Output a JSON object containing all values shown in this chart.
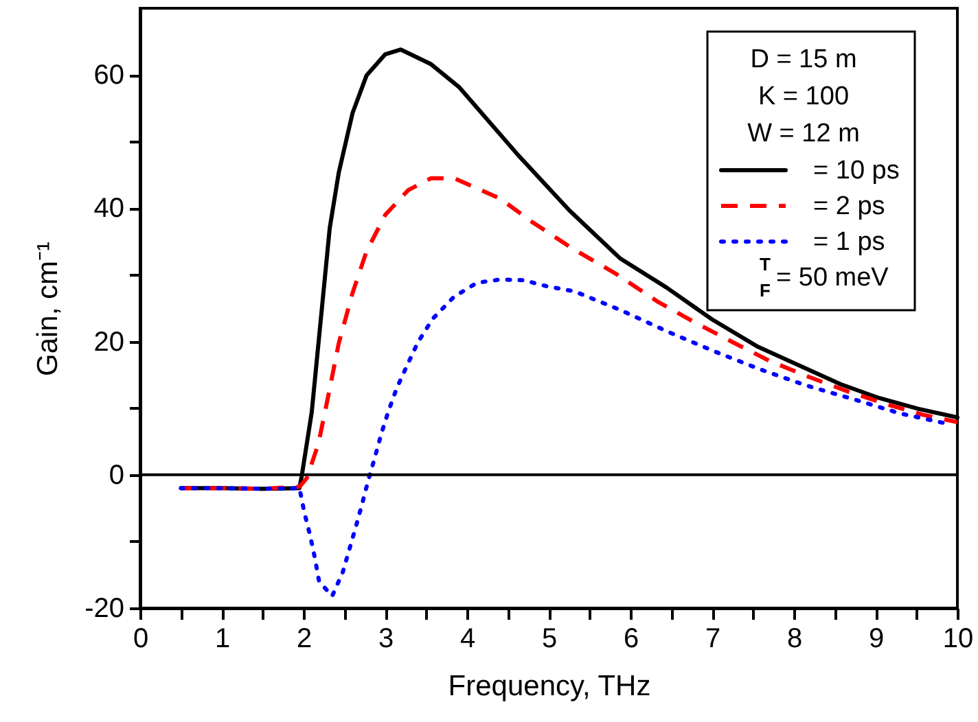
{
  "chart_data": {
    "type": "line",
    "xlabel": "Frequency, THz",
    "ylabel": "Gain, cm⁻¹",
    "xlim": [
      0,
      10
    ],
    "ylim": [
      -20,
      70
    ],
    "xticks": [
      0,
      {
        "value": 0.5,
        "label": null
      },
      1,
      {
        "value": 1.5,
        "label": null
      },
      2,
      {
        "value": 2.5,
        "label": null
      },
      3,
      {
        "value": 3.5,
        "label": null
      },
      4,
      {
        "value": 4.5,
        "label": null
      },
      5,
      {
        "value": 5.5,
        "label": null
      },
      6,
      {
        "value": 6.5,
        "label": null
      },
      7,
      {
        "value": 7.5,
        "label": null
      },
      8,
      {
        "value": 8.5,
        "label": null
      },
      9,
      {
        "value": 9.5,
        "label": null
      },
      10
    ],
    "yticks": [
      -20,
      {
        "value": -10,
        "label": null
      },
      0,
      {
        "value": 10,
        "label": null
      },
      20,
      {
        "value": 30,
        "label": null
      },
      40,
      {
        "value": 50,
        "label": null
      },
      60
    ],
    "grid": false,
    "legend": "top right",
    "marker": "none",
    "annotations": [
      "D = 15   m",
      "K = 100",
      "W = 12   m",
      "$^{T}$$_{F}$= 50 meV"
    ],
    "ref_lines": [
      {
        "axis": "y",
        "value": 0,
        "color": "#000000"
      }
    ],
    "series": [
      {
        "name": "= 10 ps",
        "color": "#000000",
        "line_style": "solid",
        "x": [
          0.5,
          1.0,
          1.5,
          1.95,
          1.98,
          2.1,
          2.21,
          2.32,
          2.43,
          2.6,
          2.77,
          3.0,
          3.19,
          3.56,
          3.9,
          4.63,
          5.25,
          5.87,
          6.44,
          7.0,
          7.56,
          8.12,
          8.57,
          9.02,
          9.52,
          10.0
        ],
        "values": [
          -2,
          -2,
          -2.1,
          -2,
          0,
          9.4,
          23.2,
          37,
          45.3,
          54.3,
          59.9,
          63.1,
          63.8,
          61.6,
          58.2,
          47.9,
          39.7,
          32.5,
          28.1,
          23.3,
          19.2,
          16.1,
          13.6,
          11.6,
          9.9,
          8.6
        ]
      },
      {
        "name": "= 2 ps",
        "color": "#ff0000",
        "line_style": "dashed",
        "x": [
          0.5,
          1.0,
          1.5,
          1.95,
          2.04,
          2.18,
          2.32,
          2.43,
          2.6,
          2.77,
          3.0,
          3.28,
          3.56,
          3.84,
          4.41,
          4.8,
          5.31,
          5.83,
          6.33,
          6.78,
          7.25,
          7.7,
          8.18,
          8.66,
          9.13,
          9.58,
          10.0
        ],
        "values": [
          -2,
          -2,
          -2.1,
          -1.8,
          -0.5,
          4.6,
          12.9,
          19.7,
          27.3,
          33.5,
          39,
          42.7,
          44.5,
          44.5,
          41.4,
          37.9,
          33.8,
          30.1,
          26,
          22.9,
          19.9,
          17.1,
          14.7,
          12.5,
          10.6,
          9,
          7.9
        ]
      },
      {
        "name": "= 1 ps",
        "color": "#0000ff",
        "line_style": "dotted",
        "x": [
          0.5,
          1.0,
          1.5,
          1.95,
          2.01,
          2.08,
          2.14,
          2.19,
          2.35,
          2.48,
          2.56,
          2.64,
          2.72,
          2.79,
          2.87,
          2.95,
          3.04,
          3.14,
          3.27,
          3.4,
          3.58,
          3.84,
          4.12,
          4.41,
          4.69,
          4.97,
          5.32,
          5.88,
          6.47,
          7.03,
          7.59,
          8.15,
          8.74,
          9.3,
          9.86
        ],
        "values": [
          -2,
          -2,
          -2.1,
          -2,
          -5.7,
          -9.1,
          -12.6,
          -16,
          -18.2,
          -14.6,
          -11.2,
          -7.8,
          -4.2,
          -0.9,
          2.5,
          6.1,
          9.6,
          13,
          16.5,
          19.9,
          23.4,
          26.7,
          28.8,
          29.3,
          29.2,
          28.3,
          27.5,
          24.7,
          21.4,
          18.5,
          15.8,
          13.4,
          11.3,
          9.2,
          7.7
        ]
      }
    ]
  }
}
